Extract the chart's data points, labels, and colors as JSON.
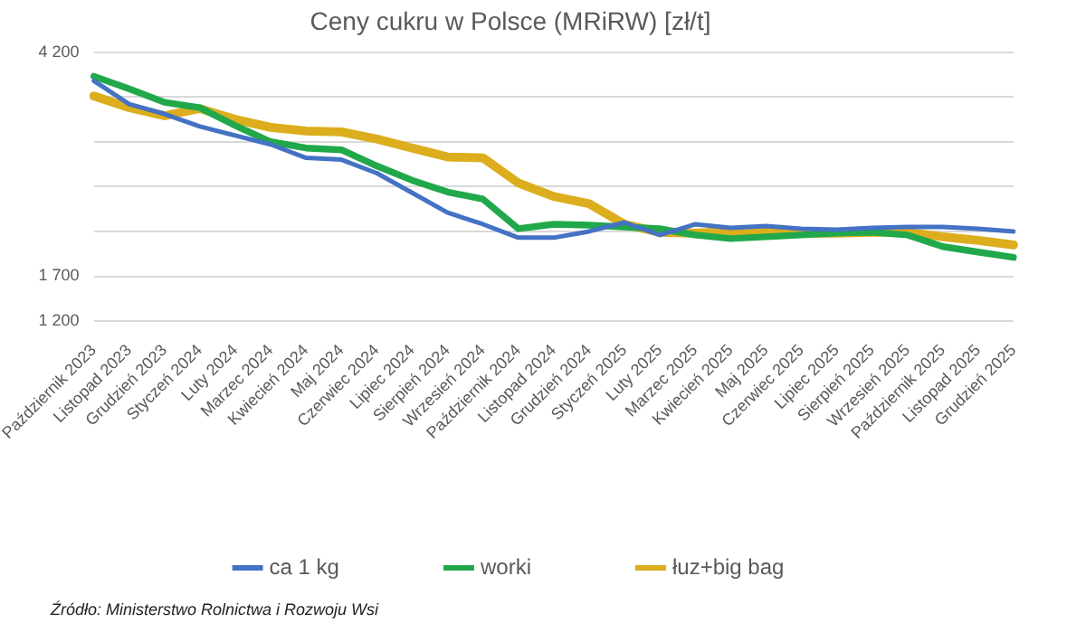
{
  "chart_data": {
    "type": "line",
    "title": "Ceny cukru w Polsce (MRiRW) [zł/t]",
    "categories": [
      "Październik 2023",
      "Listopad 2023",
      "Grudzień 2023",
      "Styczeń 2024",
      "Luty 2024",
      "Marzec 2024",
      "Kwiecień 2024",
      "Maj 2024",
      "Czerwiec 2024",
      "Lipiec 2024",
      "Sierpień 2024",
      "Wrzesień 2024",
      "Październik 2024",
      "Listopad 2024",
      "Grudzień 2024",
      "Styczeń 2025",
      "Luty 2025",
      "Marzec 2025",
      "Kwiecień 2025",
      "Maj 2025",
      "Czerwiec 2025",
      "Lipiec 2025",
      "Sierpień 2025",
      "Wrzesień 2025",
      "Październik 2025",
      "Listopad 2025",
      "Grudzień 2025"
    ],
    "series": [
      {
        "name": "ca 1 kg",
        "color": "#4472c4",
        "values": [
          3880,
          3620,
          3510,
          3370,
          3270,
          3170,
          3020,
          3000,
          2850,
          2630,
          2410,
          2280,
          2130,
          2130,
          2200,
          2300,
          2160,
          2280,
          2240,
          2260,
          2230,
          2220,
          2240,
          2250,
          2250,
          2230,
          2200
        ]
      },
      {
        "name": "worki",
        "color": "#21a84a",
        "values": [
          3930,
          3790,
          3640,
          3580,
          3380,
          3200,
          3130,
          3110,
          2930,
          2770,
          2640,
          2560,
          2230,
          2280,
          2270,
          2250,
          2230,
          2160,
          2120,
          2140,
          2160,
          2180,
          2190,
          2160,
          2030,
          1970,
          1910
        ]
      },
      {
        "name": "łuz+big bag",
        "color": "#dcae1d",
        "values": [
          3710,
          3580,
          3490,
          3570,
          3450,
          3360,
          3320,
          3310,
          3230,
          3130,
          3030,
          3020,
          2740,
          2590,
          2510,
          2280,
          2190,
          2180,
          2200,
          2200,
          2180,
          2180,
          2190,
          2190,
          2140,
          2100,
          2050
        ]
      }
    ],
    "ylim": [
      1200,
      4200
    ],
    "yticks": [
      {
        "value": 1200,
        "label": "1 200"
      },
      {
        "value": 1700,
        "label": "1 700"
      },
      {
        "value": 2200,
        "label": null
      },
      {
        "value": 2700,
        "label": null
      },
      {
        "value": 3200,
        "label": null
      },
      {
        "value": 3700,
        "label": null
      },
      {
        "value": 4200,
        "label": "4 200"
      }
    ],
    "grid": "y",
    "legend": "bottom",
    "marker": "none",
    "line_style": "solid",
    "annotations": [
      "Źródło: Ministerstwo Rolnictwa i Rozwoju Wsi"
    ]
  }
}
